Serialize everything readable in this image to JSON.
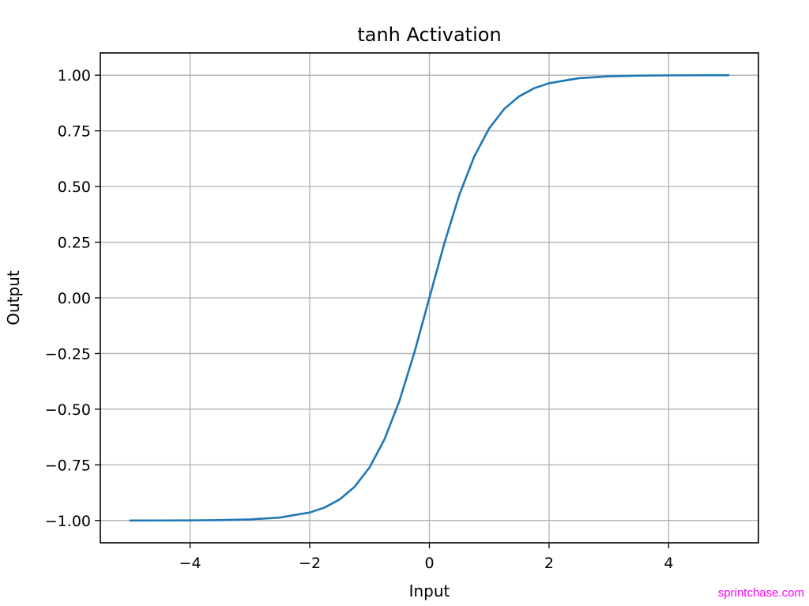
{
  "chart_data": {
    "type": "line",
    "title": "tanh Activation",
    "xlabel": "Input",
    "ylabel": "Output",
    "xlim": [
      -5.5,
      5.5
    ],
    "ylim": [
      -1.1,
      1.1
    ],
    "xticks": [
      -4,
      -2,
      0,
      2,
      4
    ],
    "xtick_labels": [
      "−4",
      "−2",
      "0",
      "2",
      "4"
    ],
    "yticks": [
      -1.0,
      -0.75,
      -0.5,
      -0.25,
      0.0,
      0.25,
      0.5,
      0.75,
      1.0
    ],
    "ytick_labels": [
      "−1.00",
      "−0.75",
      "−0.50",
      "−0.25",
      "0.00",
      "0.25",
      "0.50",
      "0.75",
      "1.00"
    ],
    "grid": true,
    "series": [
      {
        "color": "#1f77b4",
        "x": [
          -5.0,
          -4.5,
          -4.0,
          -3.5,
          -3.0,
          -2.5,
          -2.0,
          -1.75,
          -1.5,
          -1.25,
          -1.0,
          -0.75,
          -0.5,
          -0.25,
          0.0,
          0.25,
          0.5,
          0.75,
          1.0,
          1.25,
          1.5,
          1.75,
          2.0,
          2.5,
          3.0,
          3.5,
          4.0,
          4.5,
          5.0
        ],
        "y": [
          -0.9999,
          -0.9998,
          -0.9993,
          -0.9982,
          -0.9951,
          -0.9866,
          -0.964,
          -0.9414,
          -0.9051,
          -0.8483,
          -0.7616,
          -0.6351,
          -0.4621,
          -0.2449,
          0.0,
          0.2449,
          0.4621,
          0.6351,
          0.7616,
          0.8483,
          0.9051,
          0.9414,
          0.964,
          0.9866,
          0.9951,
          0.9982,
          0.9993,
          0.9998,
          0.9999
        ]
      }
    ]
  },
  "watermark": "sprintchase.com"
}
